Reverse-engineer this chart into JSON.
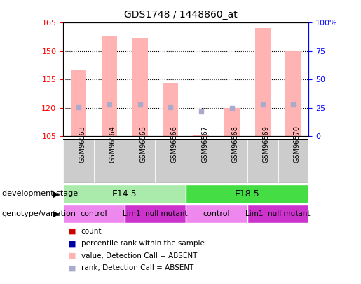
{
  "title": "GDS1748 / 1448860_at",
  "samples": [
    "GSM96563",
    "GSM96564",
    "GSM96565",
    "GSM96566",
    "GSM96567",
    "GSM96568",
    "GSM96569",
    "GSM96570"
  ],
  "ylim_left": [
    105,
    165
  ],
  "ylim_right": [
    0,
    100
  ],
  "yticks_left": [
    105,
    120,
    135,
    150,
    165
  ],
  "yticks_right": [
    0,
    25,
    50,
    75,
    100
  ],
  "bar_top_absent": [
    140,
    158,
    157,
    133,
    106,
    120,
    162,
    150
  ],
  "rank_absent": [
    120.5,
    122,
    122,
    120.5,
    118,
    120,
    122,
    122
  ],
  "color_bar_absent": "#FFB3B3",
  "color_rank_absent": "#AAAACC",
  "color_e145": "#AAEAAA",
  "color_e185": "#44DD44",
  "color_control": "#EE88EE",
  "color_mutant": "#CC33CC",
  "color_grid": "black",
  "legend_colors": [
    "#CC0000",
    "#0000AA",
    "#FFB3B3",
    "#AAAACC"
  ],
  "legend_labels": [
    "count",
    "percentile rank within the sample",
    "value, Detection Call = ABSENT",
    "rank, Detection Call = ABSENT"
  ]
}
